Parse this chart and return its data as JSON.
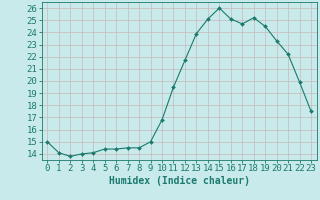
{
  "x": [
    0,
    1,
    2,
    3,
    4,
    5,
    6,
    7,
    8,
    9,
    10,
    11,
    12,
    13,
    14,
    15,
    16,
    17,
    18,
    19,
    20,
    21,
    22,
    23
  ],
  "y": [
    15.0,
    14.1,
    13.8,
    14.0,
    14.1,
    14.4,
    14.4,
    14.5,
    14.5,
    15.0,
    16.8,
    19.5,
    21.7,
    23.9,
    25.1,
    26.0,
    25.1,
    24.7,
    25.2,
    24.5,
    23.3,
    22.2,
    19.9,
    17.5
  ],
  "line_color": "#1a7a6e",
  "marker": "D",
  "marker_size": 2.0,
  "bg_color": "#c8eaea",
  "grid_color": "#c8b8b8",
  "tick_color": "#1a7a6e",
  "xlabel": "Humidex (Indice chaleur)",
  "ylabel_ticks": [
    14,
    15,
    16,
    17,
    18,
    19,
    20,
    21,
    22,
    23,
    24,
    25,
    26
  ],
  "xlim": [
    -0.5,
    23.5
  ],
  "ylim": [
    13.5,
    26.5
  ],
  "xlabel_fontsize": 7,
  "tick_fontsize": 6.5
}
